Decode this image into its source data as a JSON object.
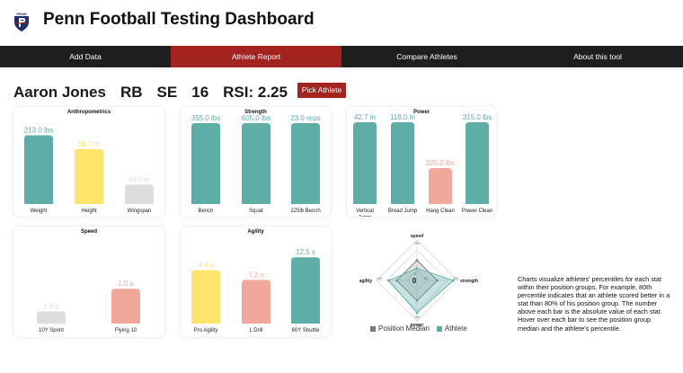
{
  "header": {
    "title": "Penn Football Testing Dashboard",
    "logo_text": "PENN"
  },
  "nav": {
    "items": [
      "Add Data",
      "Athlete Report",
      "Compare Athletes",
      "About this tool"
    ],
    "active": "Athlete Report"
  },
  "athlete": {
    "name": "Aaron Jones",
    "position": "RB",
    "group": "SE",
    "number": "16",
    "rsi": "RSI: 2.25",
    "pick_label": "Pick Athlete"
  },
  "colors": {
    "teal": "#5fada7",
    "yellow": "#fde46a",
    "grey": "#dddddd",
    "salmon": "#efa89a",
    "brand": "#a3241f",
    "nav": "#1e1e1e"
  },
  "chart_data": [
    {
      "type": "bar",
      "title": "Anthropometrics",
      "categories": [
        "Weight",
        "Height",
        "Wingspan"
      ],
      "values": [
        213.0,
        69.7,
        69.0
      ],
      "value_labels": [
        "213.0 lbs",
        "69.7 in",
        "69.0 in"
      ],
      "percentiles": [
        85,
        68,
        24
      ],
      "colors": [
        "#5fada7",
        "#fde46a",
        "#dddddd"
      ]
    },
    {
      "type": "bar",
      "title": "Strength",
      "categories": [
        "Bench",
        "Squat",
        "225lb Bench"
      ],
      "values": [
        355.0,
        605.0,
        23.0
      ],
      "value_labels": [
        "355.0 lbs",
        "605.0 lbs",
        "23.0 reps"
      ],
      "percentiles": [
        90,
        90,
        90
      ],
      "colors": [
        "#5fada7",
        "#5fada7",
        "#5fada7"
      ]
    },
    {
      "type": "bar",
      "title": "Power",
      "categories": [
        "Vertical Jump",
        "Broad Jump",
        "Hang Clean",
        "Power Clean"
      ],
      "values": [
        42.7,
        118.0,
        225.0,
        315.0
      ],
      "value_labels": [
        "42.7 in",
        "118.0 in",
        "225.0 lbs",
        "315.0 lbs"
      ],
      "percentiles": [
        91,
        91,
        40,
        91
      ],
      "colors": [
        "#5fada7",
        "#5fada7",
        "#efa89a",
        "#5fada7"
      ]
    },
    {
      "type": "bar",
      "title": "Speed",
      "categories": [
        "10Y Sprint",
        "Flying 10"
      ],
      "values": [
        1.6,
        1.0
      ],
      "value_labels": [
        "1.6 s",
        "1.0 s"
      ],
      "percentiles": [
        14,
        40
      ],
      "colors": [
        "#dddddd",
        "#efa89a"
      ]
    },
    {
      "type": "bar",
      "title": "Agility",
      "categories": [
        "Pro Agility",
        "L Drill",
        "60Y Shuttle"
      ],
      "values": [
        4.4,
        7.2,
        12.5
      ],
      "value_labels": [
        "4.4 s",
        "7.2 s",
        "12.5 s"
      ],
      "percentiles": [
        66,
        54,
        82
      ],
      "colors": [
        "#fde46a",
        "#efa89a",
        "#5fada7"
      ]
    },
    {
      "type": "radar",
      "axes": [
        "speed",
        "strength",
        "power",
        "agility"
      ],
      "ticks": [
        "100",
        "0",
        "100",
        "100",
        "100",
        "50"
      ],
      "center_label": "0",
      "series": [
        {
          "name": "Position Median",
          "values": [
            50,
            50,
            50,
            50
          ],
          "color": "#7a7a7a"
        },
        {
          "name": "Athlete",
          "values": [
            30,
            90,
            80,
            70
          ],
          "color": "#5fada7"
        }
      ]
    }
  ],
  "legend": {
    "median": "Position Median",
    "athlete": "Athlete"
  },
  "note": "Charts visualize athletes' percentiles for each stat within their position groups. For example, 80th percentile indicates that an athlete scored better in a stat than 80% of his position group. The number above each bar is the absolute value of each stat. Hover over each bar to see the position group median and the athlete's percentile."
}
